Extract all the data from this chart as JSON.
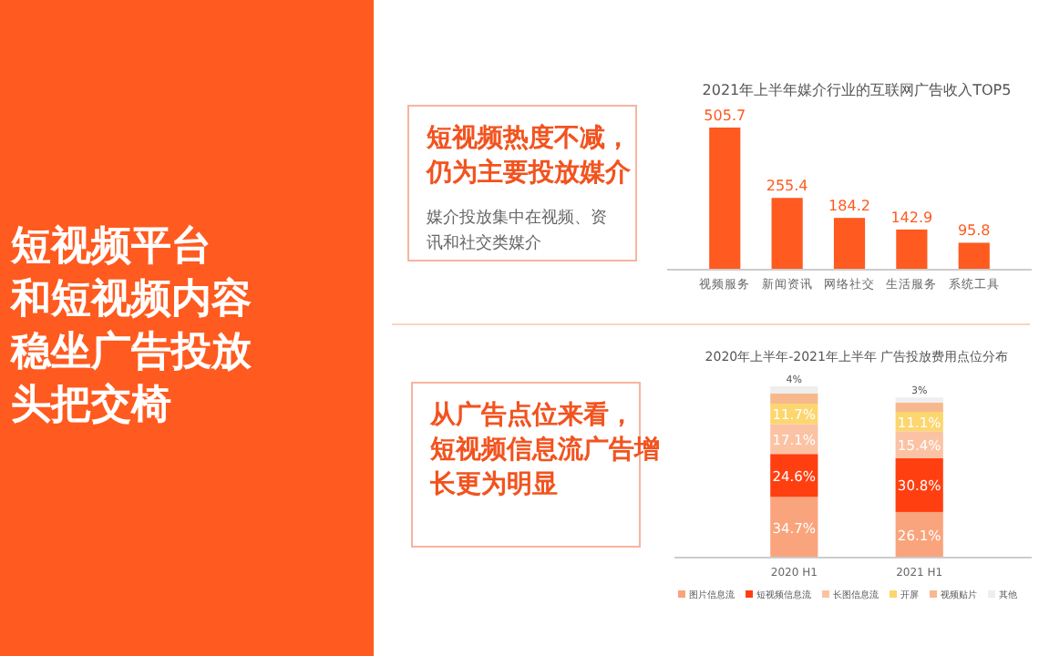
{
  "chart_data": [
    {
      "type": "other",
      "title": "短视频平台和短视频内容稳坐广告投放头把交椅"
    },
    {
      "type": "bar",
      "title": "2021年上半年媒介行业的互联网广告收入TOP5",
      "categories": [
        "视频服务",
        "新闻资讯",
        "网络社交",
        "生活服务",
        "系统工具"
      ],
      "values": [
        505.7,
        255.4,
        184.2,
        142.9,
        95.8
      ],
      "color": "#ff5a1f",
      "data_labels": true,
      "annotations": [
        "短视频热度不减，仍为主要投放媒介",
        "媒介投放集中在视频、资讯和社交类媒介"
      ]
    },
    {
      "type": "bar",
      "stacked": true,
      "title": "2020年上半年-2021年上半年 广告投放费用点位分布",
      "categories": [
        "2020 H1",
        "2021 H1"
      ],
      "legend": "bottom",
      "series": [
        {
          "name": "图片信息流",
          "color": "#f9a47c",
          "values": [
            34.7,
            26.1
          ],
          "value_labels": [
            "34.7%",
            "26.1%"
          ]
        },
        {
          "name": "短视频信息流",
          "color": "#ff3f10",
          "values": [
            24.6,
            30.8
          ],
          "value_labels": [
            "24.6%",
            "30.8%"
          ]
        },
        {
          "name": "长图信息流",
          "color": "#fbc2a3",
          "values": [
            17.1,
            15.4
          ],
          "value_labels": [
            "17.1%",
            "15.4%"
          ]
        },
        {
          "name": "开屏",
          "color": "#fcd66e",
          "values": [
            11.7,
            11.1
          ],
          "value_labels": [
            "11.7%",
            "11.1%"
          ]
        },
        {
          "name": "视频贴片",
          "color": "#f8b88e",
          "values": [
            5.9,
            5.2
          ],
          "value_labels": [
            null,
            null
          ]
        },
        {
          "name": "其他",
          "color": "#eeeeee",
          "values": [
            4,
            3
          ],
          "value_labels": [
            "4%",
            "3%"
          ]
        }
      ],
      "annotations": [
        "从广告点位来看，短视频信息流广告增长更为明显"
      ]
    }
  ]
}
